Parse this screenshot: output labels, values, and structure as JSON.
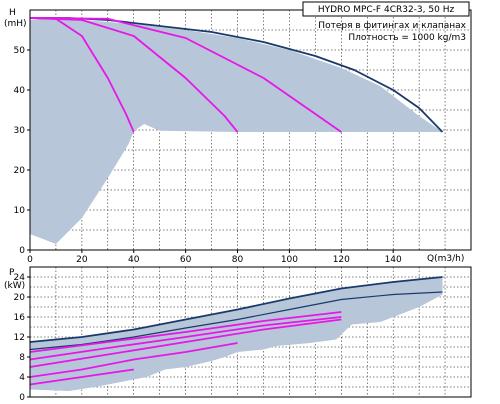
{
  "colors": {
    "area_fill": "#b7c6d8",
    "envelope_line": "#1a3a6b",
    "system_curve": "#e817e8",
    "power_light": "#3b6fb2"
  },
  "legend": {
    "title": "HYDRO MPC-F 4CR32-3, 50 Hz",
    "line1": "Потеря в фитингах и клапанах",
    "line2": "Плотность = 1000 kg/m3"
  },
  "chart_data": [
    {
      "type": "area",
      "ylabel_top": "H",
      "ylabel_unit": "(mH)",
      "xlabel": "Q(m3/h)",
      "xlim": [
        0,
        170
      ],
      "ylim": [
        0,
        60
      ],
      "x_ticks": [
        "0",
        "20",
        "40",
        "60",
        "80",
        "100",
        "120",
        "140"
      ],
      "y_ticks": [
        "0",
        "10",
        "20",
        "30",
        "40",
        "50"
      ],
      "grid": true,
      "area_outline": [
        [
          0,
          57.5
        ],
        [
          10,
          58
        ],
        [
          20,
          57.5
        ],
        [
          40,
          56.5
        ],
        [
          60,
          55
        ],
        [
          80,
          53
        ],
        [
          100,
          50
        ],
        [
          120,
          45.5
        ],
        [
          135,
          41
        ],
        [
          150,
          33.5
        ],
        [
          159,
          29.5
        ],
        [
          150,
          29.5
        ],
        [
          120,
          29.5
        ],
        [
          80,
          29.5
        ],
        [
          50,
          29.8
        ],
        [
          44,
          31.5
        ],
        [
          40,
          29.7
        ],
        [
          38,
          26.5
        ],
        [
          30,
          18
        ],
        [
          20,
          8
        ],
        [
          10,
          1.5
        ],
        [
          0,
          4
        ]
      ],
      "series": [
        {
          "role": "envelope",
          "points": [
            [
              0,
              58
            ],
            [
              15,
              58
            ],
            [
              30,
              57.5
            ],
            [
              50,
              56
            ],
            [
              70,
              54.5
            ],
            [
              90,
              52
            ],
            [
              110,
              48.5
            ],
            [
              125,
              45
            ],
            [
              140,
              40
            ],
            [
              150,
              35.5
            ],
            [
              159,
              29.5
            ]
          ]
        },
        {
          "role": "system",
          "points": [
            [
              0,
              58
            ],
            [
              10,
              57.8
            ],
            [
              20,
              53.5
            ],
            [
              30,
              43
            ],
            [
              37,
              34
            ],
            [
              40,
              29.5
            ]
          ]
        },
        {
          "role": "system",
          "points": [
            [
              0,
              58
            ],
            [
              20,
              57.5
            ],
            [
              40,
              53.5
            ],
            [
              60,
              43
            ],
            [
              75,
              33.5
            ],
            [
              80,
              29.5
            ]
          ]
        },
        {
          "role": "system",
          "points": [
            [
              0,
              58
            ],
            [
              30,
              57.8
            ],
            [
              60,
              53
            ],
            [
              90,
              43
            ],
            [
              110,
              34
            ],
            [
              120,
              29.5
            ]
          ]
        }
      ]
    },
    {
      "type": "area",
      "ylabel_top": "P",
      "ylabel_unit": "(kW)",
      "xlim": [
        0,
        170
      ],
      "ylim": [
        0,
        26
      ],
      "y_ticks": [
        "0",
        "4",
        "8",
        "12",
        "16",
        "20",
        "24"
      ],
      "grid": true,
      "area_outline": [
        [
          0,
          11
        ],
        [
          20,
          12
        ],
        [
          40,
          13.5
        ],
        [
          60,
          15.5
        ],
        [
          80,
          17.5
        ],
        [
          100,
          19.7
        ],
        [
          120,
          21.7
        ],
        [
          140,
          23
        ],
        [
          159,
          24
        ],
        [
          159,
          20.5
        ],
        [
          150,
          18
        ],
        [
          135,
          15
        ],
        [
          124,
          14.5
        ],
        [
          118,
          11.5
        ],
        [
          108,
          10.8
        ],
        [
          95,
          10.2
        ],
        [
          90,
          9.5
        ],
        [
          80,
          9
        ],
        [
          75,
          8
        ],
        [
          70,
          7.2
        ],
        [
          60,
          6
        ],
        [
          52,
          5.5
        ],
        [
          45,
          4
        ],
        [
          35,
          3
        ],
        [
          25,
          2
        ],
        [
          15,
          1.2
        ],
        [
          0,
          1.5
        ]
      ],
      "series": [
        {
          "role": "upper",
          "points": [
            [
              0,
              11
            ],
            [
              20,
              12
            ],
            [
              40,
              13.5
            ],
            [
              60,
              15.5
            ],
            [
              80,
              17.5
            ],
            [
              100,
              19.7
            ],
            [
              120,
              21.7
            ],
            [
              140,
              23
            ],
            [
              159,
              24
            ]
          ]
        },
        {
          "role": "lower",
          "points": [
            [
              0,
              9.5
            ],
            [
              20,
              10.5
            ],
            [
              40,
              12
            ],
            [
              60,
              13.8
            ],
            [
              80,
              15.5
            ],
            [
              100,
              17.5
            ],
            [
              120,
              19.5
            ],
            [
              140,
              20.5
            ],
            [
              159,
              21
            ]
          ]
        },
        {
          "role": "system",
          "points": [
            [
              0,
              2.5
            ],
            [
              20,
              4
            ],
            [
              40,
              5.5
            ]
          ]
        },
        {
          "role": "system",
          "points": [
            [
              0,
              4
            ],
            [
              20,
              5.5
            ],
            [
              40,
              7.5
            ],
            [
              60,
              9
            ],
            [
              80,
              10.8
            ]
          ]
        },
        {
          "role": "system",
          "points": [
            [
              0,
              6
            ],
            [
              30,
              8.5
            ],
            [
              60,
              11
            ],
            [
              90,
              13.5
            ],
            [
              120,
              15.5
            ]
          ]
        },
        {
          "role": "system",
          "points": [
            [
              0,
              7.5
            ],
            [
              30,
              9.8
            ],
            [
              60,
              12
            ],
            [
              90,
              14.3
            ],
            [
              120,
              16
            ]
          ]
        },
        {
          "role": "system",
          "points": [
            [
              0,
              9
            ],
            [
              30,
              11
            ],
            [
              60,
              13
            ],
            [
              90,
              15.2
            ],
            [
              120,
              17
            ]
          ]
        }
      ]
    }
  ]
}
